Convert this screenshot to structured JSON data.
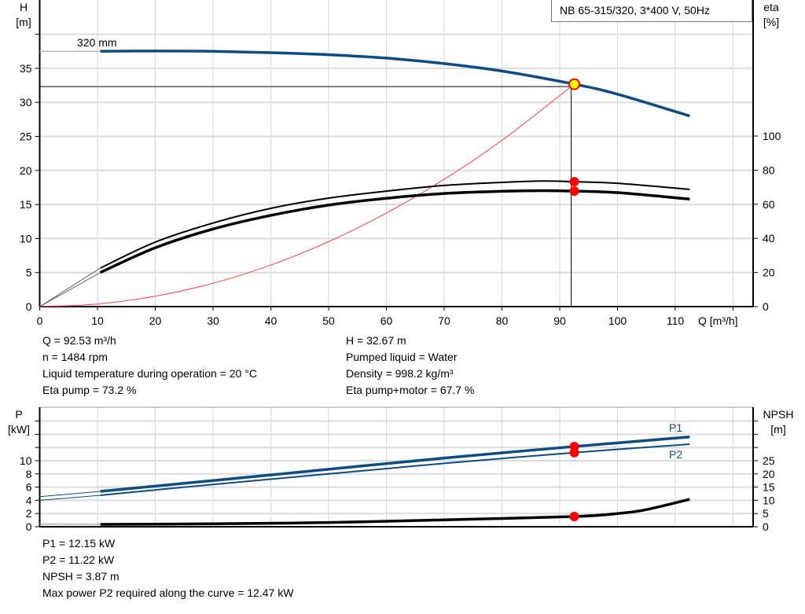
{
  "chart_data": [
    {
      "type": "line",
      "title": "NB 65-315/320, 3*400 V, 50Hz",
      "xlabel": "Q [m³/h]",
      "ylabel_left": "H\n[m]",
      "ylabel_right": "eta\n[%]",
      "xlim": [
        0,
        123
      ],
      "ylim_left": [
        0,
        45
      ],
      "ylim_right": [
        0,
        100
      ],
      "x_ticks": [
        0,
        10,
        20,
        30,
        40,
        50,
        60,
        70,
        80,
        90,
        100,
        110
      ],
      "y_ticks_left": [
        0,
        5,
        10,
        15,
        20,
        25,
        30,
        35
      ],
      "y_ticks_right": [
        0,
        20,
        40,
        60,
        80,
        100
      ],
      "grid": true,
      "legend": "top-right",
      "colors": {
        "head": "#0f4c81",
        "eta": "#000000",
        "system": "#ff4040",
        "marker": "#ff0000",
        "duty_point": "#ffff00"
      },
      "impeller_label": "320 mm",
      "series": [
        {
          "axis": "left",
          "color": "#0f4c81",
          "points": [
            [
              10.5,
              37.5
            ],
            [
              20,
              37.55
            ],
            [
              30,
              37.5
            ],
            [
              40,
              37.3
            ],
            [
              50,
              37.0
            ],
            [
              60,
              36.5
            ],
            [
              70,
              35.7
            ],
            [
              80,
              34.6
            ],
            [
              92.53,
              32.67
            ],
            [
              100,
              31.2
            ],
            [
              112.5,
              28.0
            ]
          ],
          "extension": [
            [
              0,
              37.5
            ],
            [
              10.5,
              37.5
            ]
          ]
        },
        {
          "axis": "right",
          "color": "#000000",
          "points": [
            [
              10.5,
              22.6
            ],
            [
              20,
              37.8
            ],
            [
              30,
              49
            ],
            [
              40,
              57.6
            ],
            [
              50,
              63.6
            ],
            [
              60,
              67.7
            ],
            [
              70,
              71
            ],
            [
              80,
              72.8
            ],
            [
              87,
              73.6
            ],
            [
              92.53,
              73.2
            ],
            [
              100,
              72.3
            ],
            [
              112.5,
              68.7
            ]
          ],
          "extension": [
            [
              0,
              0
            ],
            [
              10.5,
              22.6
            ]
          ]
        },
        {
          "axis": "right",
          "color": "#000000",
          "points": [
            [
              10.5,
              20
            ],
            [
              20,
              34.5
            ],
            [
              30,
              45.5
            ],
            [
              40,
              53.5
            ],
            [
              50,
              59.5
            ],
            [
              60,
              63.5
            ],
            [
              70,
              66.3
            ],
            [
              80,
              67.6
            ],
            [
              87,
              68
            ],
            [
              92.53,
              67.7
            ],
            [
              100,
              66.8
            ],
            [
              112.5,
              63
            ]
          ],
          "extension": [
            [
              0,
              0
            ],
            [
              10.5,
              20
            ]
          ]
        },
        {
          "axis": "left",
          "color": "#ff4040",
          "points": [
            [
              0,
              0
            ],
            [
              10,
              0.38
            ],
            [
              20,
              1.53
            ],
            [
              30,
              3.43
            ],
            [
              40,
              6.1
            ],
            [
              50,
              9.54
            ],
            [
              60,
              13.74
            ],
            [
              70,
              18.7
            ],
            [
              80,
              24.42
            ],
            [
              92.53,
              32.67
            ]
          ]
        }
      ],
      "duty_point": {
        "Q": 92.53,
        "H": 32.67,
        "eta_pump": 73.2,
        "eta_total": 67.7
      }
    },
    {
      "type": "line",
      "xlabel": "",
      "ylabel_left": "P\n[kW]",
      "ylabel_right": "NPSH\n[m]",
      "xlim": [
        0,
        123
      ],
      "ylim_left": [
        0,
        18
      ],
      "ylim_right": [
        0,
        45
      ],
      "y_ticks_left": [
        0,
        2,
        4,
        6,
        8,
        10
      ],
      "y_ticks_right": [
        0,
        5,
        10,
        15,
        20,
        25
      ],
      "grid": true,
      "series": [
        {
          "name": "P1",
          "axis": "left",
          "color": "#0f4c81",
          "points": [
            [
              10.5,
              5.36
            ],
            [
              30,
              7.0
            ],
            [
              50,
              8.7
            ],
            [
              70,
              10.4
            ],
            [
              92.53,
              12.15
            ],
            [
              112.5,
              13.6
            ]
          ],
          "extension": [
            [
              0,
              4.55
            ],
            [
              10.5,
              5.36
            ]
          ]
        },
        {
          "name": "P2",
          "axis": "left",
          "color": "#0f4c81",
          "points": [
            [
              10.5,
              4.76
            ],
            [
              30,
              6.4
            ],
            [
              50,
              8.0
            ],
            [
              70,
              9.6
            ],
            [
              92.53,
              11.22
            ],
            [
              112.5,
              12.5
            ]
          ],
          "extension": [
            [
              0,
              4.0
            ],
            [
              10.5,
              4.76
            ]
          ]
        },
        {
          "axis": "right",
          "color": "#000000",
          "points": [
            [
              10.5,
              0.9
            ],
            [
              30,
              1.1
            ],
            [
              50,
              1.6
            ],
            [
              70,
              2.6
            ],
            [
              92.53,
              3.87
            ],
            [
              100,
              5.0
            ],
            [
              105,
              6.5
            ],
            [
              112.5,
              10.4
            ]
          ],
          "extension": [
            [
              0,
              1.0
            ],
            [
              10.5,
              0.9
            ]
          ]
        }
      ],
      "duty_point": {
        "Q": 92.53,
        "P1": 12.15,
        "P2": 11.22,
        "NPSH": 3.87
      }
    }
  ],
  "info_top": {
    "left": [
      "Q = 92.53 m³/h",
      "n = 1484 rpm",
      "Liquid temperature during operation = 20 °C",
      "Eta pump = 73.2 %"
    ],
    "right": [
      "H = 32.67 m",
      "Pumped liquid = Water",
      "Density = 998.2 kg/m³",
      "Eta pump+motor = 67.7 %"
    ]
  },
  "info_bottom": [
    "P1 = 12.15 kW",
    "P2 = 11.22 kW",
    "NPSH = 3.87 m",
    "Max power P2 required along the curve = 12.47 kW"
  ]
}
